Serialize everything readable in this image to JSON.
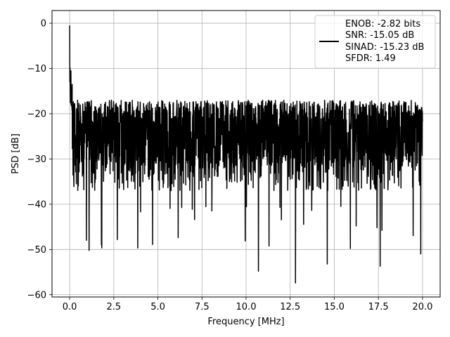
{
  "chart_data": {
    "type": "line",
    "title": "",
    "xlabel": "Frequency [MHz]",
    "ylabel": "PSD [dB]",
    "xlim": [
      -1.0,
      21.0
    ],
    "ylim": [
      -60.5,
      2.8
    ],
    "x_ticks": [
      0.0,
      2.5,
      5.0,
      7.5,
      10.0,
      12.5,
      15.0,
      17.5,
      20.0
    ],
    "x_tick_labels": [
      "0.0",
      "2.5",
      "5.0",
      "7.5",
      "10.0",
      "12.5",
      "15.0",
      "17.5",
      "20.0"
    ],
    "y_ticks": [
      0,
      -10,
      -20,
      -30,
      -40,
      -50,
      -60
    ],
    "y_tick_labels": [
      "0",
      "−10",
      "−20",
      "−30",
      "−40",
      "−50",
      "−60"
    ],
    "grid": true,
    "legend_position": "top-right",
    "series": [
      {
        "label_lines": [
          "ENOB: -2.82 bits",
          "SNR: -15.05 dB",
          "SINAD: -15.23 dB",
          "SFDR: 1.49"
        ],
        "color": "#000000",
        "x_range": [
          0.0,
          20.0
        ],
        "noise_floor_db": -24,
        "approx_upper_envelope_db": -17,
        "approx_lower_envelope_db": -37,
        "start_peak_db": -0.5,
        "notable_minima": [
          {
            "x": 1.1,
            "y": -50.2
          },
          {
            "x": 4.7,
            "y": -48.9
          },
          {
            "x": 10.7,
            "y": -54.8
          },
          {
            "x": 12.8,
            "y": -57.4
          },
          {
            "x": 14.6,
            "y": -53.2
          },
          {
            "x": 17.6,
            "y": -53.7
          },
          {
            "x": 19.9,
            "y": -51.0
          }
        ]
      }
    ]
  }
}
